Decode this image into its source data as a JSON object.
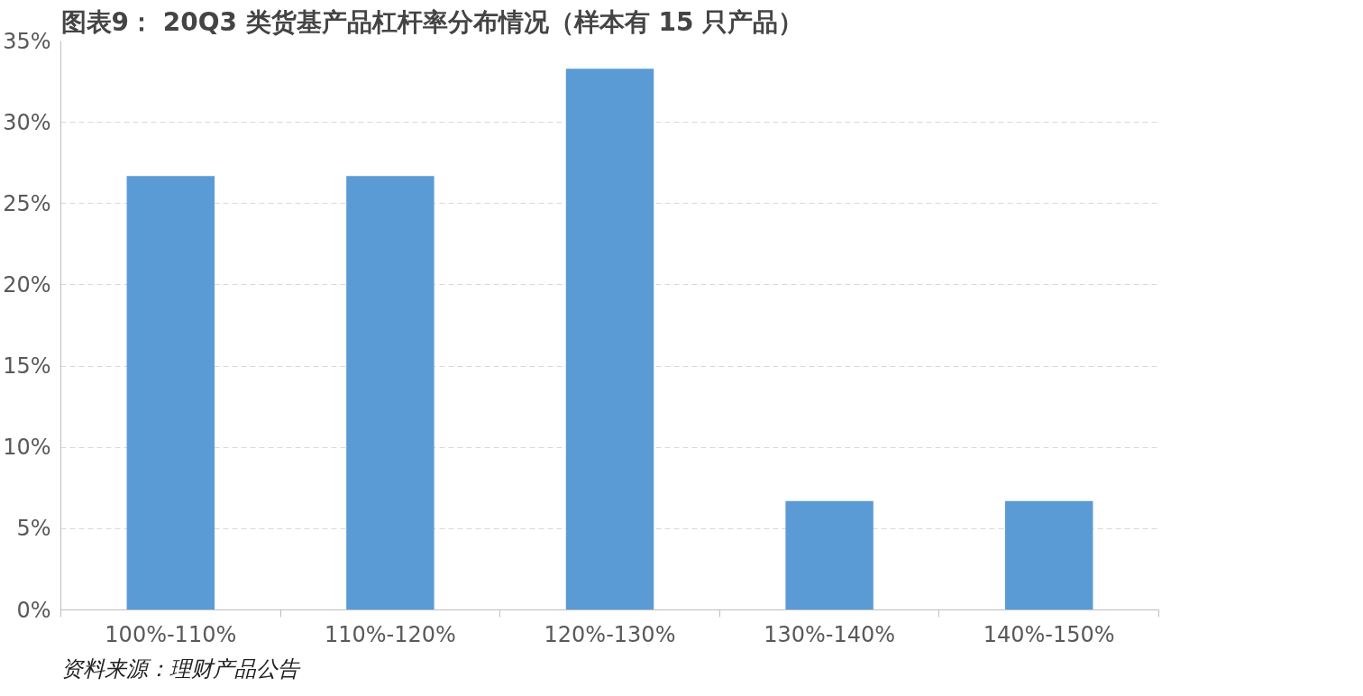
{
  "chart_data": {
    "type": "bar",
    "title": "图表9： 20Q3 类货基产品杠杆率分布情况（样本有 15 只产品）",
    "categories": [
      "100%-110%",
      "110%-120%",
      "120%-130%",
      "130%-140%",
      "140%-150%"
    ],
    "values": [
      26.7,
      26.7,
      33.3,
      6.7,
      6.7
    ],
    "color": "#5b9bd5",
    "ylim": [
      0,
      35
    ],
    "yticks": [
      {
        "value": 0,
        "label": "0%"
      },
      {
        "value": 5,
        "label": "5%"
      },
      {
        "value": 10,
        "label": "10%"
      },
      {
        "value": 15,
        "label": "15%"
      },
      {
        "value": 20,
        "label": "20%"
      },
      {
        "value": 25,
        "label": "25%"
      },
      {
        "value": 30,
        "label": "30%"
      },
      {
        "value": 35,
        "label": "35%"
      }
    ],
    "grid": "y",
    "annotations": [
      "资料来源：理财产品公告"
    ]
  }
}
